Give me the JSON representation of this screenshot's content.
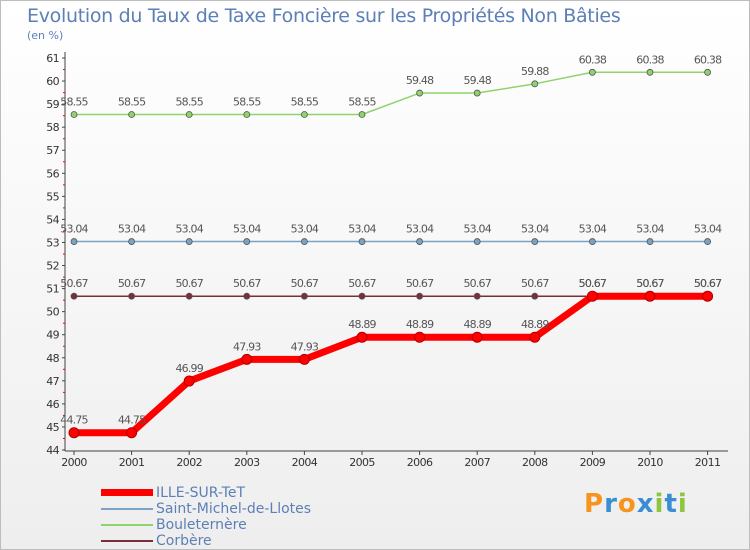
{
  "chart_data": {
    "type": "line",
    "title": "Evolution du Taux de Taxe Foncière sur les Propriétés Non Bâties",
    "ylabel": "(en %)",
    "x": [
      "2000",
      "2001",
      "2002",
      "2003",
      "2004",
      "2005",
      "2006",
      "2007",
      "2008",
      "2009",
      "2010",
      "2011"
    ],
    "ylim": [
      44,
      61
    ],
    "yticks": [
      "44",
      "45",
      "46",
      "47",
      "48",
      "49",
      "50",
      "51",
      "52",
      "53",
      "54",
      "55",
      "56",
      "57",
      "58",
      "59",
      "60",
      "61"
    ],
    "series": [
      {
        "name": "Bouleternère",
        "color": "#8ed36b",
        "values": [
          58.55,
          58.55,
          58.55,
          58.55,
          58.55,
          58.55,
          59.48,
          59.48,
          59.88,
          60.38,
          60.38,
          60.38
        ],
        "labels": [
          "58.55",
          "58.55",
          "58.55",
          "58.55",
          "58.55",
          "58.55",
          "59.48",
          "59.48",
          "59.88",
          "60.38",
          "60.38",
          "60.38"
        ]
      },
      {
        "name": "Saint-Michel-de-Llotes",
        "color": "#7aa3c8",
        "values": [
          53.04,
          53.04,
          53.04,
          53.04,
          53.04,
          53.04,
          53.04,
          53.04,
          53.04,
          53.04,
          53.04,
          53.04
        ],
        "labels": [
          "53.04",
          "53.04",
          "53.04",
          "53.04",
          "53.04",
          "53.04",
          "53.04",
          "53.04",
          "53.04",
          "53.04",
          "53.04",
          "53.04"
        ]
      },
      {
        "name": "Corbère",
        "color": "#7a2f36",
        "values": [
          50.67,
          50.67,
          50.67,
          50.67,
          50.67,
          50.67,
          50.67,
          50.67,
          50.67,
          50.67,
          50.67,
          50.67
        ],
        "labels": [
          "50.67",
          "50.67",
          "50.67",
          "50.67",
          "50.67",
          "50.67",
          "50.67",
          "50.67",
          "50.67",
          "50.67",
          "50.67",
          "50.67"
        ]
      },
      {
        "name": "ILLE-SUR-TeT",
        "color": "#ff0000",
        "values": [
          44.75,
          44.75,
          46.99,
          47.93,
          47.93,
          48.89,
          48.89,
          48.89,
          48.89,
          50.67,
          50.67,
          50.67
        ],
        "labels": [
          "44.75",
          "44.75",
          "46.99",
          "47.93",
          "47.93",
          "48.89",
          "48.89",
          "48.89",
          "48.89",
          "50.67",
          "50.67",
          "50.67"
        ]
      }
    ],
    "legend": [
      "ILLE-SUR-TeT",
      "Saint-Michel-de-Llotes",
      "Bouleternère",
      "Corbère"
    ]
  },
  "logo": {
    "letters": [
      "P",
      "r",
      "o",
      "x",
      "i",
      "t",
      "i"
    ],
    "colors": [
      "#f7941d",
      "#3a8fd4",
      "#f7941d",
      "#3a8fd4",
      "#8cc63f",
      "#3a8fd4",
      "#8cc63f"
    ]
  }
}
